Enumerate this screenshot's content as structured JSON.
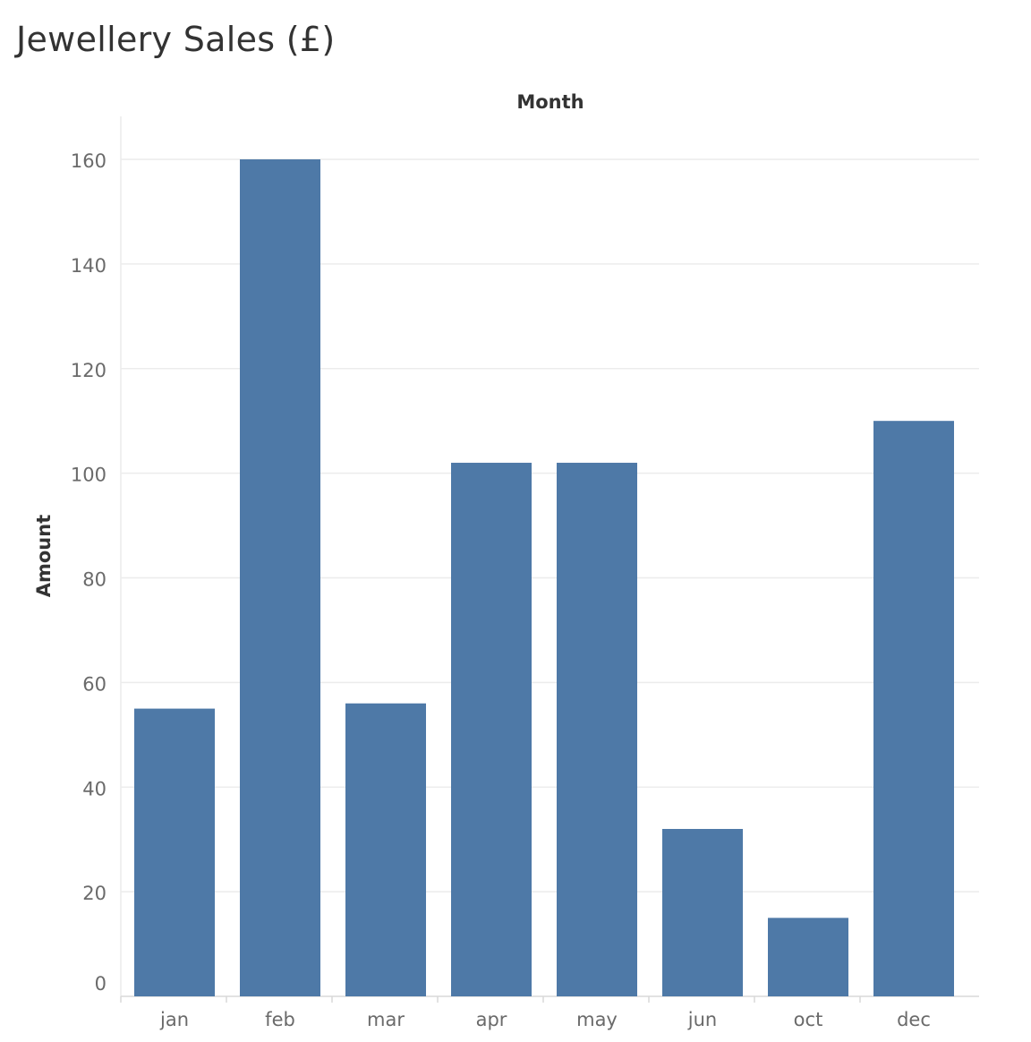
{
  "chart_data": {
    "type": "bar",
    "title": "Jewellery Sales (£)",
    "xlabel": "Month",
    "ylabel": "Amount",
    "categories": [
      "jan",
      "feb",
      "mar",
      "apr",
      "may",
      "jun",
      "oct",
      "dec"
    ],
    "values": [
      55,
      160,
      56,
      102,
      102,
      32,
      15,
      110
    ],
    "ylim": [
      0,
      160
    ],
    "yticks": [
      0,
      20,
      40,
      60,
      80,
      100,
      120,
      140,
      160
    ],
    "grid": true,
    "legend": "none",
    "colors": {
      "bar": "#4e79a7",
      "grid": "#ececec",
      "axis": "#d9d9d9",
      "tick_text": "#6a6a6a",
      "title_text": "#333333"
    }
  }
}
